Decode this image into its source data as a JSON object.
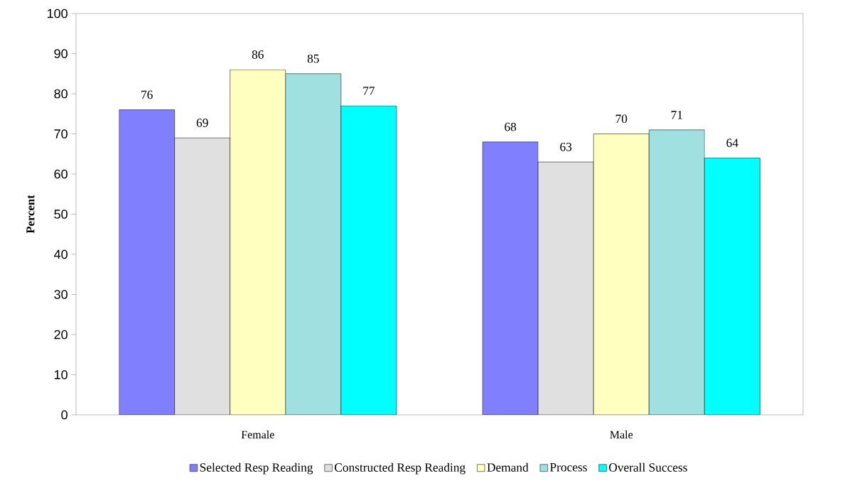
{
  "chart_data": {
    "type": "bar",
    "ylabel": "Percent",
    "categories": [
      "Female",
      "Male"
    ],
    "series": [
      {
        "name": "Selected Resp Reading",
        "color": "#8080ff",
        "values": [
          76,
          68
        ]
      },
      {
        "name": "Constructed Resp Reading",
        "color": "#e0e0e0",
        "values": [
          69,
          63
        ]
      },
      {
        "name": "Demand",
        "color": "#ffffc0",
        "values": [
          86,
          70
        ]
      },
      {
        "name": "Process",
        "color": "#a0e0e0",
        "values": [
          85,
          71
        ]
      },
      {
        "name": "Overall Success",
        "color": "#00ffff",
        "values": [
          77,
          64
        ]
      }
    ],
    "ylim": [
      0,
      100
    ],
    "yticks": [
      0,
      10,
      20,
      30,
      40,
      50,
      60,
      70,
      80,
      90,
      100
    ],
    "data_labels": true,
    "legend": "bottom",
    "grid": false
  }
}
